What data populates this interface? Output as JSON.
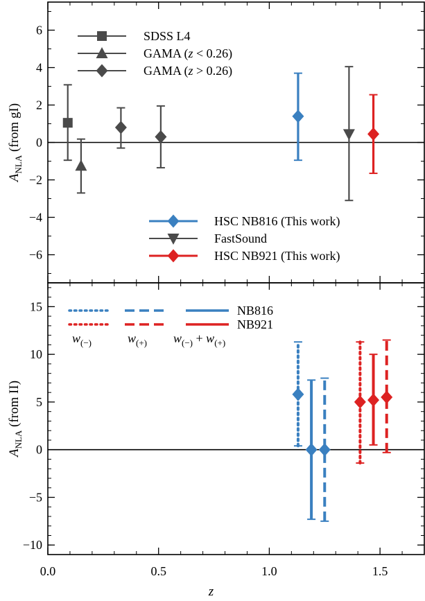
{
  "chart_data": [
    {
      "type": "scatter",
      "panel": "top",
      "ylabel_main": "A",
      "ylabel_sub": "NLA",
      "ylabel_rest": " (from gI)",
      "xlim": [
        0.0,
        1.7
      ],
      "ylim": [
        -7.5,
        7.5
      ],
      "yticks": [
        6,
        4,
        2,
        0,
        -2,
        -4,
        -6
      ],
      "ytick_labels": [
        "6",
        "4",
        "2",
        "0",
        "−2",
        "−4",
        "−6"
      ],
      "zero_line": true,
      "series": [
        {
          "name": "SDSS L4",
          "legend_parts": [
            {
              "t": "SDSS L4",
              "i": false
            }
          ],
          "color": "#4a4a4a",
          "marker": "square",
          "points": [
            {
              "x": 0.09,
              "y": 1.05,
              "lo": -0.95,
              "hi": 3.08
            }
          ]
        },
        {
          "name": "GAMA (z < 0.26)",
          "legend_parts": [
            {
              "t": "GAMA (",
              "i": false
            },
            {
              "t": "z",
              "i": true
            },
            {
              "t": " < 0.26)",
              "i": false
            }
          ],
          "color": "#4a4a4a",
          "marker": "triangle-up",
          "points": [
            {
              "x": 0.15,
              "y": -1.25,
              "lo": -2.7,
              "hi": 0.18
            }
          ]
        },
        {
          "name": "GAMA (z > 0.26)",
          "legend_parts": [
            {
              "t": "GAMA (",
              "i": false
            },
            {
              "t": "z",
              "i": true
            },
            {
              "t": " > 0.26)",
              "i": false
            }
          ],
          "color": "#4a4a4a",
          "marker": "diamond",
          "points": [
            {
              "x": 0.33,
              "y": 0.8,
              "lo": -0.3,
              "hi": 1.85
            },
            {
              "x": 0.51,
              "y": 0.3,
              "lo": -1.35,
              "hi": 1.95
            }
          ]
        },
        {
          "name": "HSC NB816 (This work)",
          "legend_parts": [
            {
              "t": "HSC NB816 (This work)",
              "i": false
            }
          ],
          "color": "#3a80c0",
          "marker": "diamond",
          "points": [
            {
              "x": 1.13,
              "y": 1.4,
              "lo": -0.95,
              "hi": 3.7
            }
          ]
        },
        {
          "name": "FastSound",
          "legend_parts": [
            {
              "t": "FastSound",
              "i": false
            }
          ],
          "color": "#4a4a4a",
          "marker": "triangle-down",
          "points": [
            {
              "x": 1.36,
              "y": 0.45,
              "lo": -3.1,
              "hi": 4.05
            }
          ]
        },
        {
          "name": "HSC NB921 (This work)",
          "legend_parts": [
            {
              "t": "HSC NB921 (This work)",
              "i": false
            }
          ],
          "color": "#dd2222",
          "marker": "diamond",
          "points": [
            {
              "x": 1.47,
              "y": 0.45,
              "lo": -1.65,
              "hi": 2.55
            }
          ]
        }
      ]
    },
    {
      "type": "scatter",
      "panel": "bottom",
      "xlabel": "z",
      "ylabel_main": "A",
      "ylabel_sub": "NLA",
      "ylabel_rest": " (from II)",
      "xlim": [
        0.0,
        1.7
      ],
      "ylim": [
        -11,
        17.5
      ],
      "xticks": [
        0.0,
        0.5,
        1.0,
        1.5
      ],
      "xtick_labels": [
        "0.0",
        "0.5",
        "1.0",
        "1.5"
      ],
      "yticks": [
        15,
        10,
        5,
        0,
        -5,
        -10
      ],
      "ytick_labels": [
        "15",
        "10",
        "5",
        "0",
        "−5",
        "−10"
      ],
      "zero_line": true,
      "legend_styles": [
        {
          "style": "dotted",
          "label_main": "w",
          "label_sub": "(−)"
        },
        {
          "style": "dashed",
          "label_main": "w",
          "label_sub": "(+)"
        },
        {
          "style": "solid",
          "label_main": "w",
          "label_sub": "(−)",
          "label_plus": "+",
          "label_main2": "w",
          "label_sub2": "(+)"
        }
      ],
      "legend_samples": [
        {
          "name": "NB816",
          "color": "#3a80c0"
        },
        {
          "name": "NB921",
          "color": "#dd2222"
        }
      ],
      "series": [
        {
          "name": "NB816",
          "color": "#3a80c0",
          "marker": "diamond",
          "points": [
            {
              "x": 1.13,
              "y": 5.8,
              "lo": 0.4,
              "hi": 11.3,
              "style": "dotted"
            },
            {
              "x": 1.19,
              "y": 0.0,
              "lo": -7.3,
              "hi": 7.3,
              "style": "solid"
            },
            {
              "x": 1.25,
              "y": 0.0,
              "lo": -7.5,
              "hi": 7.5,
              "style": "dashed"
            }
          ]
        },
        {
          "name": "NB921",
          "color": "#dd2222",
          "marker": "diamond",
          "points": [
            {
              "x": 1.41,
              "y": 5.0,
              "lo": -1.4,
              "hi": 11.3,
              "style": "dotted"
            },
            {
              "x": 1.47,
              "y": 5.2,
              "lo": 0.5,
              "hi": 10.0,
              "style": "solid"
            },
            {
              "x": 1.53,
              "y": 5.5,
              "lo": -0.3,
              "hi": 11.5,
              "style": "dashed"
            }
          ]
        }
      ]
    }
  ]
}
